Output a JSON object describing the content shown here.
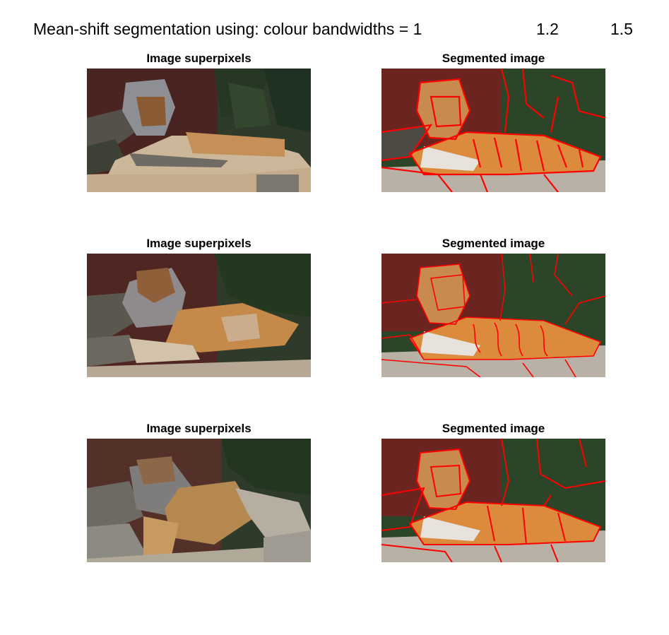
{
  "figure": {
    "title_prefix": "Mean-shift segmentation using: colour bandwidths = 1",
    "bandwidth_2": "1.2",
    "bandwidth_3": "1.5"
  },
  "rows": [
    {
      "left_title": "Image superpixels",
      "right_title": "Segmented image"
    },
    {
      "left_title": "Image superpixels",
      "right_title": "Segmented image"
    },
    {
      "left_title": "Image superpixels",
      "right_title": "Segmented image"
    }
  ],
  "colors": {
    "background_red": "#5a1f1a",
    "foliage_green": "#2b3d28",
    "tiger_orange": "#c9874a",
    "tiger_light": "#d8c2a5",
    "rock_grey": "#9a9590",
    "boundary_red": "#ff0000"
  }
}
